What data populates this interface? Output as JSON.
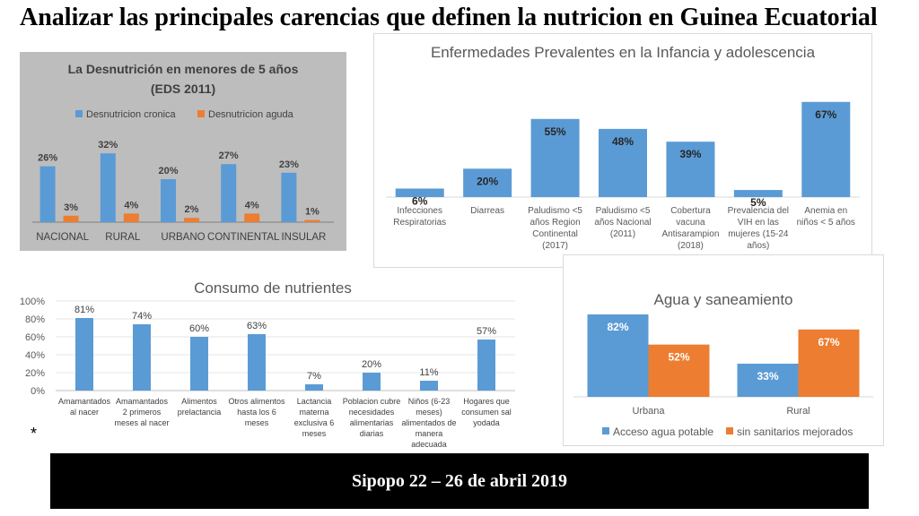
{
  "slide": {
    "title": "Analizar las principales carencias que definen la nutricion en Guinea Ecuatorial",
    "footer": "Sipopo 22 – 26 de abril 2019",
    "asterisk": "*"
  },
  "colors": {
    "blue": "#5b9bd5",
    "orange": "#ed7d31",
    "grey_bg": "#bdbdbd"
  },
  "chart_data": [
    {
      "id": "desnutricion",
      "type": "bar",
      "title": "La Desnutrición en menores de 5 años",
      "subtitle": "(EDS 2011)",
      "categories": [
        "NACIONAL",
        "RURAL",
        "URBANO",
        "CONTINENTAL",
        "INSULAR"
      ],
      "series": [
        {
          "name": "Desnutricion cronica",
          "values": [
            26,
            32,
            20,
            27,
            23
          ],
          "labels": [
            "26%",
            "32%",
            "20%",
            "27%",
            "23%"
          ]
        },
        {
          "name": "Desnutricion aguda",
          "values": [
            3,
            4,
            2,
            4,
            1
          ],
          "labels": [
            "3%",
            "4%",
            "2%",
            "4%",
            "1%"
          ]
        }
      ],
      "ylim": [
        0,
        40
      ],
      "legend": "top"
    },
    {
      "id": "enfermedades",
      "type": "bar",
      "title": "Enfermedades Prevalentes en la Infancia y adolescencia",
      "categories": [
        [
          "Infecciones",
          "Respiratorias"
        ],
        [
          "Diarreas"
        ],
        [
          "Paludismo <5",
          "años Region",
          "Continental",
          "(2017)"
        ],
        [
          "Paludismo <5",
          "años Nacional",
          "(2011)"
        ],
        [
          "Cobertura",
          "vacuna",
          "Antisarampion",
          "(2018)"
        ],
        [
          "Prevalencia del",
          "VIH en las",
          "mujeres (15-24",
          "años)"
        ],
        [
          "Anemia en",
          "niños < 5 años"
        ]
      ],
      "values": [
        6,
        20,
        55,
        48,
        39,
        5,
        67
      ],
      "labels": [
        "6%",
        "20%",
        "55%",
        "48%",
        "39%",
        "5%",
        "67%"
      ],
      "ylim": [
        0,
        70
      ]
    },
    {
      "id": "nutrientes",
      "type": "bar",
      "title": "Consumo de nutrientes",
      "categories": [
        [
          "Amamantados",
          "al nacer"
        ],
        [
          "Amamantados",
          "2 primeros",
          "meses al nacer"
        ],
        [
          "Alimentos",
          "prelactancia"
        ],
        [
          "Otros alimentos",
          "hasta los 6",
          "meses"
        ],
        [
          "Lactancia",
          "materna",
          "exclusiva 6",
          "meses"
        ],
        [
          "Poblacion cubre",
          "necesidades",
          "alimentarias",
          "diarias"
        ],
        [
          "Niños (6-23",
          "meses)",
          "alimentados de",
          "manera",
          "adecuada"
        ],
        [
          "Hogares que",
          "consumen sal",
          "yodada"
        ]
      ],
      "values": [
        81,
        74,
        60,
        63,
        7,
        20,
        11,
        57
      ],
      "labels": [
        "81%",
        "74%",
        "60%",
        "63%",
        "7%",
        "20%",
        "11%",
        "57%"
      ],
      "ylim": [
        0,
        100
      ],
      "yticks": [
        "0%",
        "20%",
        "40%",
        "60%",
        "80%",
        "100%"
      ],
      "grid": true
    },
    {
      "id": "agua",
      "type": "bar",
      "title": "Agua y saneamiento",
      "categories": [
        "Urbana",
        "Rural"
      ],
      "series": [
        {
          "name": "Acceso agua potable",
          "values": [
            82,
            33
          ],
          "labels": [
            "82%",
            "33%"
          ]
        },
        {
          "name": "sin sanitarios mejorados",
          "values": [
            52,
            67
          ],
          "labels": [
            "52%",
            "67%"
          ]
        }
      ],
      "ylim": [
        0,
        90
      ],
      "legend": "bottom"
    }
  ]
}
